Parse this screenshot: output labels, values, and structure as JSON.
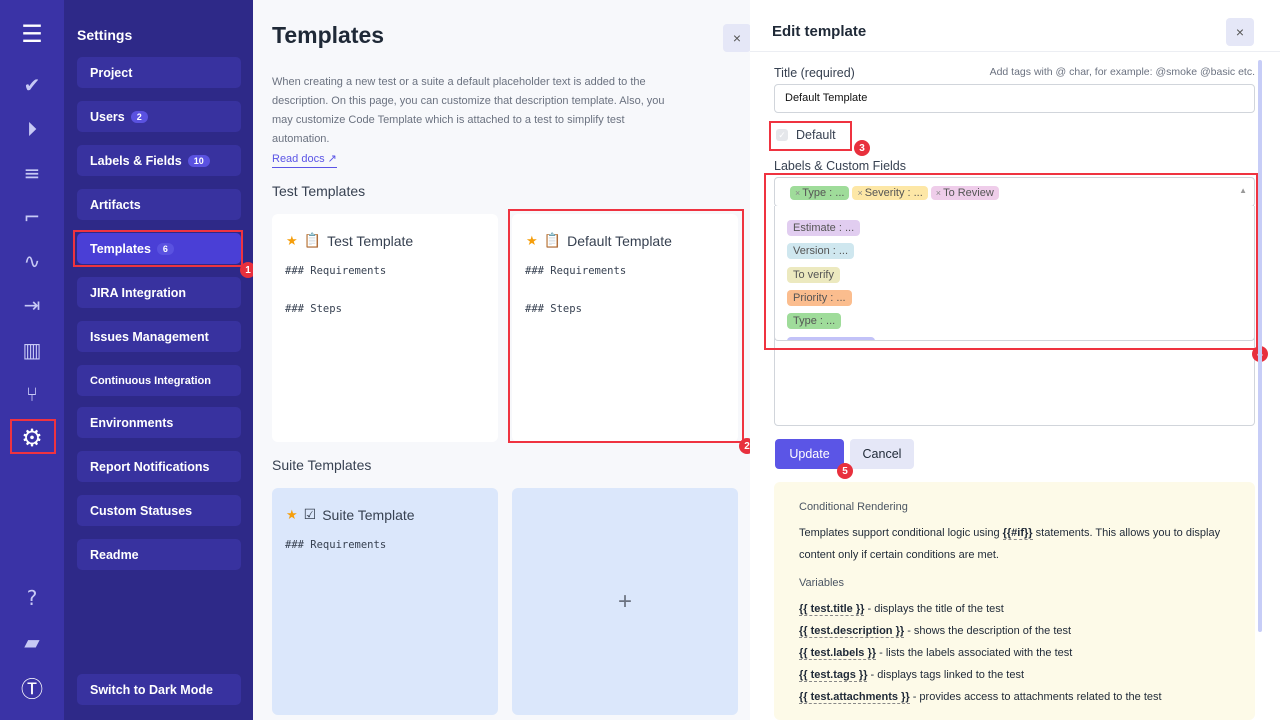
{
  "rail": {
    "icons": [
      "menu-icon",
      "check-icon",
      "play-icon",
      "checklist-icon",
      "stairs-icon",
      "pulse-icon",
      "import-icon",
      "chart-icon",
      "branch-icon",
      "gear-icon",
      "help-icon",
      "folder-icon",
      "logo-icon"
    ]
  },
  "settings": {
    "title": "Settings",
    "items": [
      {
        "label": "Project"
      },
      {
        "label": "Users",
        "badge": "2"
      },
      {
        "label": "Labels & Fields",
        "badge": "10"
      },
      {
        "label": "Artifacts"
      },
      {
        "label": "Templates",
        "badge": "6",
        "active": true
      },
      {
        "label": "JIRA Integration"
      },
      {
        "label": "Issues Management"
      },
      {
        "label": "Continuous Integration"
      },
      {
        "label": "Environments"
      },
      {
        "label": "Report Notifications"
      },
      {
        "label": "Custom Statuses"
      },
      {
        "label": "Readme"
      }
    ],
    "dark_mode": "Switch to Dark Mode"
  },
  "main": {
    "title": "Templates",
    "description": "When creating a new test or a suite a default placeholder text is added to the description. On this page, you can customize that description template. Also, you may customize Code Template which is attached to a test to simplify test automation.",
    "read_docs": "Read docs ↗",
    "test_section": "Test Templates",
    "suite_section": "Suite Templates",
    "test_templates": [
      {
        "title": "Test Template",
        "lines": [
          "### Requirements",
          "### Steps"
        ]
      },
      {
        "title": "Default Template",
        "lines": [
          "### Requirements",
          "### Steps"
        ]
      }
    ],
    "suite_templates": [
      {
        "title": "Suite Template",
        "lines": [
          "### Requirements"
        ]
      }
    ],
    "add": "+"
  },
  "panel": {
    "title": "Edit template",
    "close": "×",
    "title_label": "Title (required)",
    "tags_hint": "Add tags with @ char, for example: @smoke @basic etc.",
    "title_value": "Default Template",
    "default_label": "Default",
    "default_checked": true,
    "labels_label": "Labels & Custom Fields",
    "selected": [
      {
        "text": "Type : ...",
        "color": "#9fdc9a"
      },
      {
        "text": "Severity : ...",
        "color": "#fde7a6"
      },
      {
        "text": "To Review",
        "color": "#efcdea"
      }
    ],
    "options": [
      {
        "text": "Estimate : ...",
        "color": "#e1cdf0"
      },
      {
        "text": "Version : ...",
        "color": "#cfe7ef"
      },
      {
        "text": "To verify",
        "color": "#ece9bf"
      },
      {
        "text": "Priority : ...",
        "color": "#fbbd8e"
      },
      {
        "text": "Type : ...",
        "color": "#9fdc9a"
      },
      {
        "text": "Localization : ...",
        "color": "#c2c2f8"
      }
    ],
    "update": "Update",
    "cancel": "Cancel",
    "info": {
      "h1": "Conditional Rendering",
      "p1a": "Templates support conditional logic using ",
      "p1code": "{{#if}}",
      "p1b": " statements. This allows you to display content only if certain conditions are met.",
      "h2": "Variables",
      "vars": [
        {
          "code": "{{ test.title }}",
          "text": " - displays the title of the test"
        },
        {
          "code": "{{ test.description }}",
          "text": " - shows the description of the test"
        },
        {
          "code": "{{ test.labels }}",
          "text": " - lists the labels associated with the test"
        },
        {
          "code": "{{ test.tags }}",
          "text": " - displays tags linked to the test"
        },
        {
          "code": "{{ test.attachments }}",
          "text": " - provides access to attachments related to the test"
        }
      ]
    }
  },
  "annotations": [
    "1",
    "2",
    "3",
    "4",
    "5"
  ]
}
